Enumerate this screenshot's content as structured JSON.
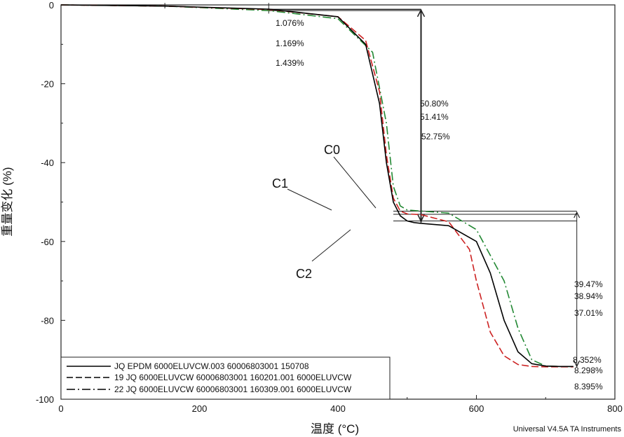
{
  "chart_data": {
    "type": "line",
    "title": "",
    "xlabel": "温度 (°C)",
    "ylabel": "重量变化 (%)",
    "xlim": [
      0,
      800
    ],
    "ylim": [
      -100,
      0
    ],
    "x_ticks": [
      "0",
      "200",
      "400",
      "600",
      "800"
    ],
    "y_ticks": [
      "0",
      "-20",
      "-40",
      "-60",
      "-80",
      "-100"
    ],
    "grid": false,
    "legend_position": "bottom-left",
    "series": [
      {
        "name": "JQ EPDM 6000ELUVCW.003 60006803001 150708",
        "color": "#000000",
        "dash": "solid",
        "x": [
          0,
          150,
          300,
          400,
          440,
          460,
          470,
          480,
          490,
          500,
          510,
          520,
          560,
          600,
          620,
          640,
          660,
          680,
          700,
          720,
          740
        ],
        "y": [
          0,
          -0.3,
          -1.08,
          -3,
          -10,
          -25,
          -40,
          -50,
          -53.5,
          -54.8,
          -55.2,
          -55.4,
          -56,
          -60,
          -68,
          -80,
          -88,
          -91,
          -91.6,
          -91.7,
          -91.7
        ]
      },
      {
        "name": "19 JQ 6000ELUVCW 60006803001 160201.001 6000ELUVCW",
        "color": "#cc2222",
        "dash": "dash",
        "x": [
          0,
          150,
          300,
          400,
          440,
          460,
          470,
          480,
          490,
          500,
          510,
          520,
          560,
          590,
          600,
          620,
          640,
          660,
          680,
          700,
          720,
          740
        ],
        "y": [
          0,
          -0.3,
          -1.17,
          -3,
          -9,
          -22,
          -38,
          -49,
          -52.3,
          -53,
          -53.1,
          -53.2,
          -55,
          -62,
          -70,
          -83,
          -89,
          -91.2,
          -91.7,
          -91.8,
          -91.8,
          -91.8
        ]
      },
      {
        "name": "22 JQ 6000ELUVCW 60006803001 160309.001 6000ELUVCW",
        "color": "#228833",
        "dash": "dashdot",
        "x": [
          0,
          150,
          300,
          400,
          450,
          470,
          480,
          490,
          500,
          520,
          560,
          600,
          640,
          660,
          680,
          700,
          720,
          740
        ],
        "y": [
          0,
          -0.3,
          -1.44,
          -3.5,
          -12,
          -30,
          -46,
          -51,
          -52,
          -52.3,
          -52.8,
          -57,
          -70,
          -82,
          -90,
          -91.6,
          -91.7,
          -91.7
        ]
      }
    ],
    "annotations": [
      "1.076%",
      "1.169%",
      "1.439%",
      "50.80%",
      "51.41%",
      "52.75%",
      "39.47%",
      "38.94%",
      "37.01%",
      "8.352%",
      "8.298%",
      "8.395%"
    ],
    "curve_labels": [
      "C0",
      "C1",
      "C2"
    ],
    "footer": "Universal V4.5A TA Instruments"
  }
}
